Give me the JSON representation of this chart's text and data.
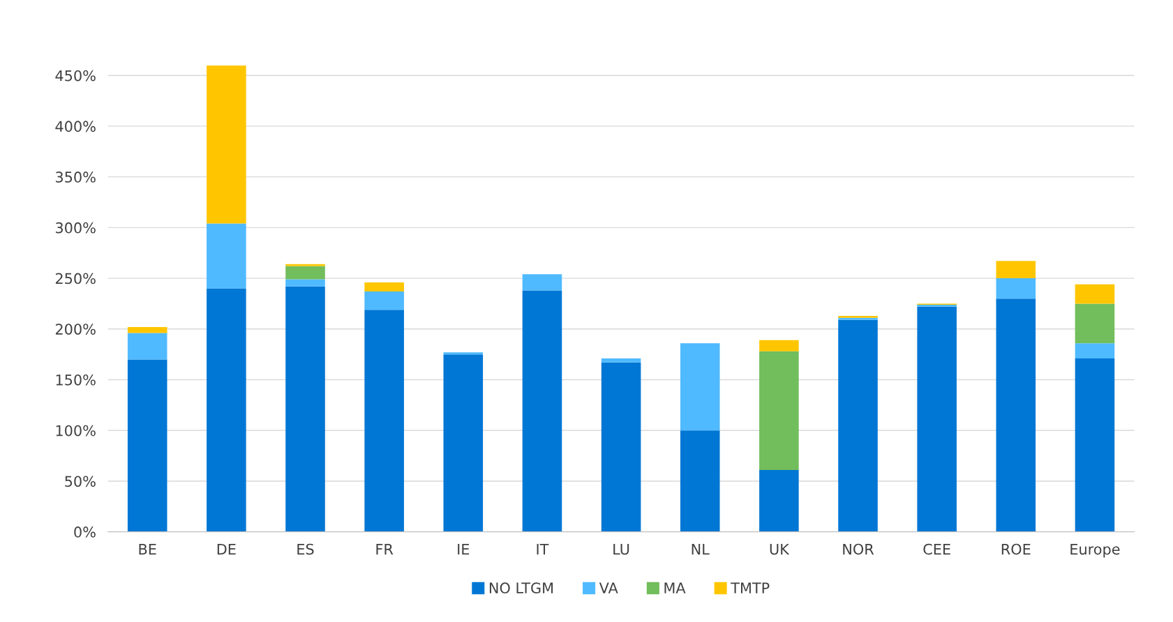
{
  "chart_data": {
    "type": "bar",
    "stacked": true,
    "categories": [
      "BE",
      "DE",
      "ES",
      "FR",
      "IE",
      "IT",
      "LU",
      "NL",
      "UK",
      "NOR",
      "CEE",
      "ROE",
      "Europe"
    ],
    "series": [
      {
        "name": "NO LTGM",
        "color": "#0077d4",
        "values": [
          170,
          240,
          242,
          219,
          175,
          238,
          167,
          100,
          61,
          209,
          222,
          230,
          171
        ]
      },
      {
        "name": "VA",
        "color": "#4fbaff",
        "values": [
          26,
          64,
          7,
          18,
          2,
          16,
          4,
          86,
          0,
          2,
          2,
          20,
          15
        ]
      },
      {
        "name": "MA",
        "color": "#72bd5c",
        "values": [
          0,
          0,
          13,
          0,
          0,
          0,
          0,
          0,
          117,
          0,
          0,
          0,
          39
        ]
      },
      {
        "name": "TMTP",
        "color": "#ffc600",
        "values": [
          6,
          156,
          2,
          9,
          0,
          0,
          0,
          0,
          11,
          2,
          1,
          17,
          19
        ]
      }
    ],
    "ylim": [
      0,
      460
    ],
    "yticks": [
      {
        "value": 0,
        "label": "0%"
      },
      {
        "value": 50,
        "label": "50%"
      },
      {
        "value": 100,
        "label": "100%"
      },
      {
        "value": 150,
        "label": "150%"
      },
      {
        "value": 200,
        "label": "200%"
      },
      {
        "value": 250,
        "label": "250%"
      },
      {
        "value": 300,
        "label": "300%"
      },
      {
        "value": 350,
        "label": "350%"
      },
      {
        "value": 400,
        "label": "400%"
      },
      {
        "value": 450,
        "label": "450%"
      }
    ],
    "grid": "y",
    "legend": "bottom"
  }
}
